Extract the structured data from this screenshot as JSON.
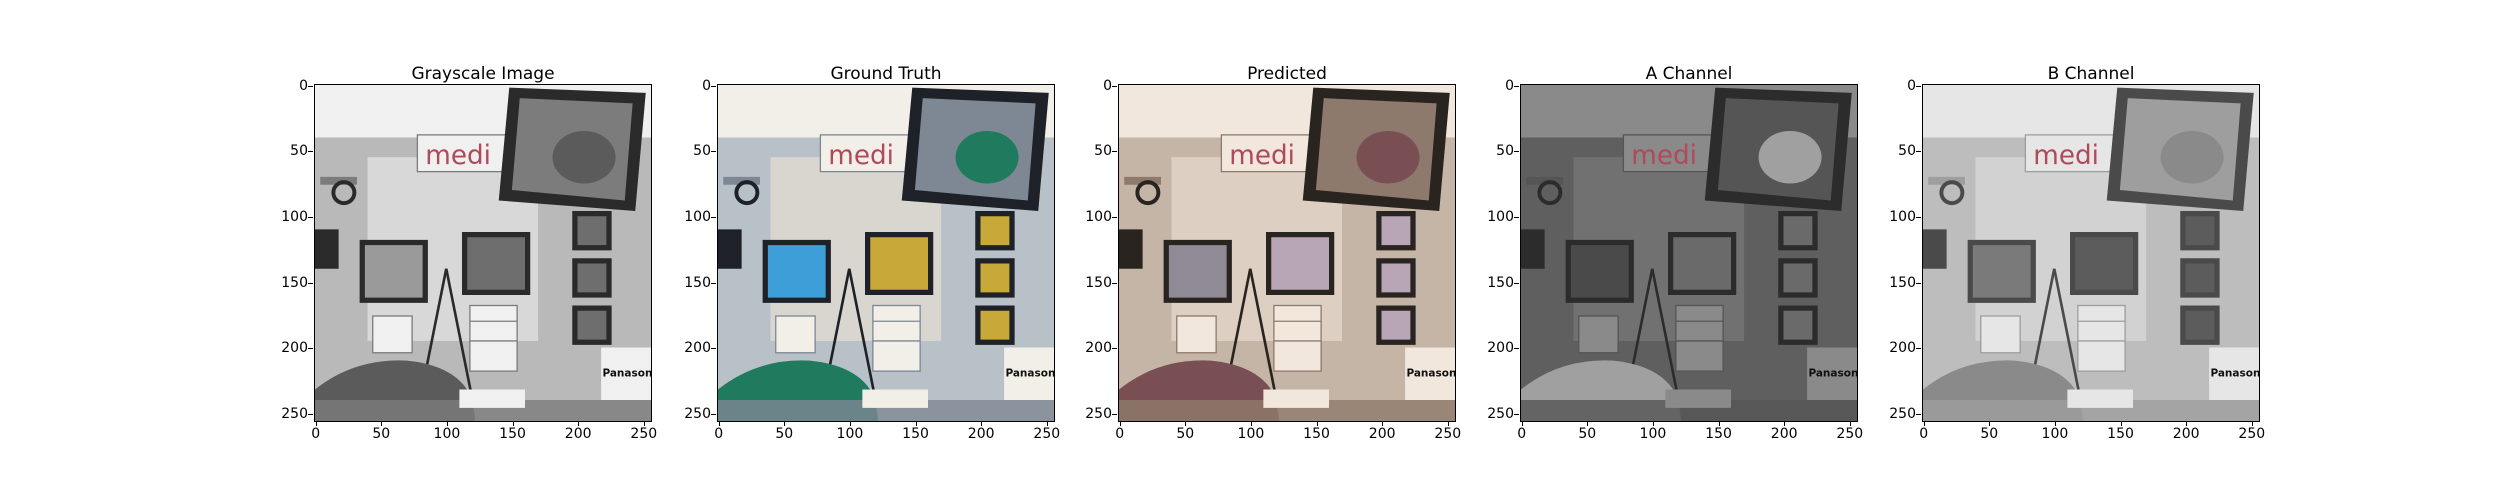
{
  "figure": {
    "panels": [
      {
        "title": "Grayscale Image",
        "style": "gray",
        "palette": {
          "bg": "#b9b9b9",
          "wall": "#d8d8d8",
          "dark": "#2a2a2a",
          "mid": "#7c7c7c",
          "light": "#f0f0f0",
          "cloth": "#5b5b5b",
          "screen": "#9a9a9a",
          "monitor2": "#6e6e6e"
        }
      },
      {
        "title": "Ground Truth",
        "style": "color",
        "palette": {
          "bg": "#b8c0c8",
          "wall": "#d9d6d0",
          "dark": "#1f2128",
          "mid": "#7e8794",
          "light": "#f2efe9",
          "cloth": "#1f7a5e",
          "screen": "#3e9fd8",
          "monitor2": "#c9a83a"
        }
      },
      {
        "title": "Predicted",
        "style": "color",
        "palette": {
          "bg": "#c4b5a6",
          "wall": "#ddd0c2",
          "dark": "#2a2420",
          "mid": "#8e7a6c",
          "light": "#f1e7dc",
          "cloth": "#7a4f53",
          "screen": "#8f8a95",
          "monitor2": "#b8a6b6"
        }
      },
      {
        "title": "A Channel",
        "style": "gray",
        "palette": {
          "bg": "#5f5f5f",
          "wall": "#717171",
          "dark": "#2c2c2c",
          "mid": "#555555",
          "light": "#8a8a8a",
          "cloth": "#a0a0a0",
          "screen": "#4a4a4a",
          "monitor2": "#6a6a6a"
        }
      },
      {
        "title": "B Channel",
        "style": "gray",
        "palette": {
          "bg": "#bdbdbd",
          "wall": "#d2d2d2",
          "dark": "#4a4a4a",
          "mid": "#9e9e9e",
          "light": "#e6e6e6",
          "cloth": "#8a8a8a",
          "screen": "#7a7a7a",
          "monitor2": "#5c5c5c"
        }
      }
    ],
    "y_ticks": [
      "0",
      "50",
      "100",
      "150",
      "200",
      "250"
    ],
    "x_ticks": [
      "0",
      "50",
      "100",
      "150",
      "200",
      "250"
    ],
    "image_size": 256,
    "sign_text": "medi",
    "brand_text": "Panasonic"
  }
}
